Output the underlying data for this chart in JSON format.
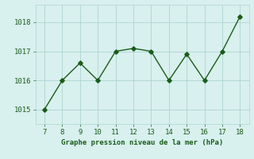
{
  "x": [
    7,
    8,
    9,
    10,
    11,
    12,
    13,
    14,
    15,
    16,
    17,
    18
  ],
  "y": [
    1015.0,
    1016.0,
    1016.6,
    1016.0,
    1017.0,
    1017.1,
    1017.0,
    1016.0,
    1016.9,
    1016.0,
    1017.0,
    1018.2
  ],
  "line_color": "#1a5c1a",
  "marker": "D",
  "marker_size": 2.8,
  "bg_color": "#d8f0ee",
  "grid_color": "#aed4d0",
  "xlabel": "Graphe pression niveau de la mer (hPa)",
  "xlabel_color": "#1a5c1a",
  "tick_color": "#1a5c1a",
  "ylim": [
    1014.5,
    1018.6
  ],
  "yticks": [
    1015,
    1016,
    1017,
    1018
  ],
  "xlim": [
    6.5,
    18.5
  ],
  "xticks": [
    7,
    8,
    9,
    10,
    11,
    12,
    13,
    14,
    15,
    16,
    17,
    18
  ]
}
